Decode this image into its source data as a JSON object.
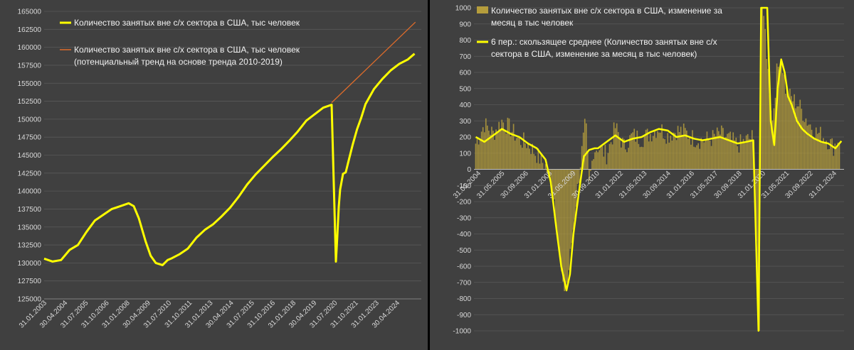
{
  "colors": {
    "background": "#404040",
    "divider": "#000000",
    "text": "#d9d9d9",
    "legend_text": "#f2f2f2",
    "yellow": "#ffff00",
    "orange": "#e06c2a",
    "bars": "#b59d3c"
  },
  "chart_data": [
    {
      "type": "line",
      "title": "",
      "xlabel": "",
      "ylabel": "",
      "ylim": [
        125000,
        165000
      ],
      "yticks": [
        "165000",
        "162500",
        "160000",
        "157500",
        "155000",
        "152500",
        "150000",
        "147500",
        "145000",
        "142500",
        "140000",
        "137500",
        "135000",
        "132500",
        "130000",
        "127500",
        "125000"
      ],
      "xticks": [
        "31.01.2003",
        "30.04.2004",
        "31.07.2005",
        "31.10.2006",
        "31.01.2008",
        "30.04.2009",
        "31.07.2010",
        "31.10.2011",
        "31.01.2013",
        "30.04.2014",
        "31.07.2015",
        "31.10.2016",
        "31.01.2018",
        "30.04.2019",
        "31.07.2020",
        "31.10.2021",
        "31.01.2023",
        "30.04.2024"
      ],
      "grid": true,
      "legend_position": "top-left",
      "series": [
        {
          "name": "Количество занятых вне с/х сектора в США, тыс человек",
          "color": "#ffff00",
          "x": [
            2003.0,
            2003.5,
            2004.0,
            2004.5,
            2005.0,
            2005.5,
            2006.0,
            2006.5,
            2007.0,
            2007.5,
            2008.0,
            2008.3,
            2008.6,
            2009.0,
            2009.3,
            2009.6,
            2010.0,
            2010.3,
            2010.5,
            2011.0,
            2011.5,
            2012.0,
            2012.5,
            2013.0,
            2013.5,
            2014.0,
            2014.5,
            2015.0,
            2015.5,
            2016.0,
            2016.5,
            2017.0,
            2017.5,
            2018.0,
            2018.5,
            2019.0,
            2019.5,
            2020.0,
            2020.25,
            2020.33,
            2020.42,
            2020.5,
            2020.67,
            2020.83,
            2021.0,
            2021.25,
            2021.5,
            2021.75,
            2022.0,
            2022.5,
            2023.0,
            2023.5,
            2024.0,
            2024.5,
            2024.9
          ],
          "values": [
            130600,
            130200,
            130400,
            131800,
            132500,
            134300,
            135900,
            136700,
            137500,
            137900,
            138300,
            137900,
            136200,
            133000,
            131000,
            130000,
            129700,
            130400,
            130600,
            131200,
            132000,
            133500,
            134600,
            135400,
            136500,
            137700,
            139200,
            140900,
            142300,
            143500,
            144700,
            145800,
            147000,
            148300,
            149800,
            150700,
            151600,
            152000,
            130200,
            133600,
            137800,
            140200,
            142400,
            142600,
            144200,
            146500,
            148600,
            150200,
            152100,
            154200,
            155600,
            156800,
            157700,
            158300,
            159100
          ]
        },
        {
          "name": "Количество занятых вне с/х сектора в США, тыс человек (потенциальный тренд на основе тренда 2010-2019)",
          "color": "#e06c2a",
          "x": [
            2020.0,
            2024.95
          ],
          "values": [
            152300,
            163500
          ]
        }
      ]
    },
    {
      "type": "bar",
      "title": "",
      "xlabel": "",
      "ylabel": "",
      "ylim": [
        -1000,
        1000
      ],
      "yticks": [
        "1000",
        "900",
        "800",
        "700",
        "600",
        "500",
        "400",
        "300",
        "200",
        "100",
        "0",
        "-100",
        "-200",
        "-300",
        "-400",
        "-500",
        "-600",
        "-700",
        "-800",
        "-900",
        "-1000"
      ],
      "xticks": [
        "31.01.2004",
        "31.05.2005",
        "30.09.2006",
        "31.01.2008",
        "31.05.2009",
        "30.09.2010",
        "31.01.2012",
        "31.05.2013",
        "30.09.2014",
        "31.01.2016",
        "31.05.2017",
        "30.09.2018",
        "31.01.2020",
        "31.05.2021",
        "30.09.2022",
        "31.01.2024"
      ],
      "grid": true,
      "legend_position": "top-left",
      "series": [
        {
          "name": "Количество занятых вне с/х сектора в США, изменение за месяц в тыс человек",
          "type": "bar",
          "color": "#b59d3c",
          "x": [
            2004.0,
            2004.5,
            2005.0,
            2005.5,
            2006.0,
            2006.5,
            2007.0,
            2007.5,
            2008.0,
            2008.25,
            2008.5,
            2008.75,
            2009.0,
            2009.25,
            2009.5,
            2009.75,
            2010.0,
            2010.3,
            2010.5,
            2010.75,
            2011.0,
            2011.5,
            2012.0,
            2012.5,
            2013.0,
            2013.5,
            2014.0,
            2014.5,
            2015.0,
            2015.5,
            2016.0,
            2016.5,
            2017.0,
            2017.5,
            2018.0,
            2018.5,
            2019.0,
            2019.5,
            2019.9,
            2020.25,
            2020.35,
            2020.45,
            2020.55,
            2020.75,
            2021.0,
            2021.25,
            2021.5,
            2021.75,
            2022.0,
            2022.5,
            2023.0,
            2023.5,
            2024.0,
            2024.5,
            2024.9
          ],
          "values": [
            160,
            280,
            220,
            300,
            250,
            180,
            160,
            90,
            20,
            -60,
            -180,
            -450,
            -750,
            -700,
            -450,
            -200,
            40,
            300,
            -100,
            120,
            140,
            90,
            260,
            140,
            210,
            190,
            220,
            260,
            210,
            240,
            230,
            190,
            180,
            190,
            220,
            190,
            150,
            180,
            200,
            -1000,
            1000,
            1000,
            900,
            600,
            300,
            600,
            700,
            500,
            450,
            400,
            300,
            230,
            200,
            140,
            210
          ]
        },
        {
          "name": "6 пер.: скользящее среднее (Количество занятых вне с/х сектора в США, изменение за месяц в тыс человек)",
          "type": "line",
          "color": "#ffff00",
          "x": [
            2004.0,
            2004.5,
            2005.0,
            2005.5,
            2006.0,
            2006.5,
            2007.0,
            2007.5,
            2008.0,
            2008.3,
            2008.6,
            2008.9,
            2009.2,
            2009.4,
            2009.6,
            2009.9,
            2010.2,
            2010.5,
            2010.8,
            2011.0,
            2011.5,
            2012.0,
            2012.5,
            2013.0,
            2013.5,
            2014.0,
            2014.5,
            2015.0,
            2015.5,
            2016.0,
            2016.5,
            2017.0,
            2017.5,
            2018.0,
            2018.5,
            2019.0,
            2019.5,
            2019.9,
            2020.2,
            2020.35,
            2020.5,
            2020.7,
            2020.9,
            2021.1,
            2021.3,
            2021.5,
            2021.7,
            2021.9,
            2022.1,
            2022.4,
            2022.7,
            2023.0,
            2023.4,
            2023.8,
            2024.2,
            2024.6,
            2024.95
          ],
          "values": [
            200,
            170,
            210,
            250,
            220,
            200,
            160,
            130,
            60,
            -80,
            -350,
            -600,
            -750,
            -650,
            -400,
            -150,
            80,
            120,
            130,
            130,
            170,
            210,
            170,
            190,
            200,
            230,
            250,
            240,
            200,
            210,
            190,
            180,
            190,
            200,
            180,
            160,
            170,
            180,
            -1000,
            1000,
            1000,
            1000,
            300,
            150,
            500,
            680,
            600,
            450,
            400,
            300,
            250,
            220,
            190,
            170,
            160,
            130,
            175
          ]
        }
      ]
    }
  ]
}
